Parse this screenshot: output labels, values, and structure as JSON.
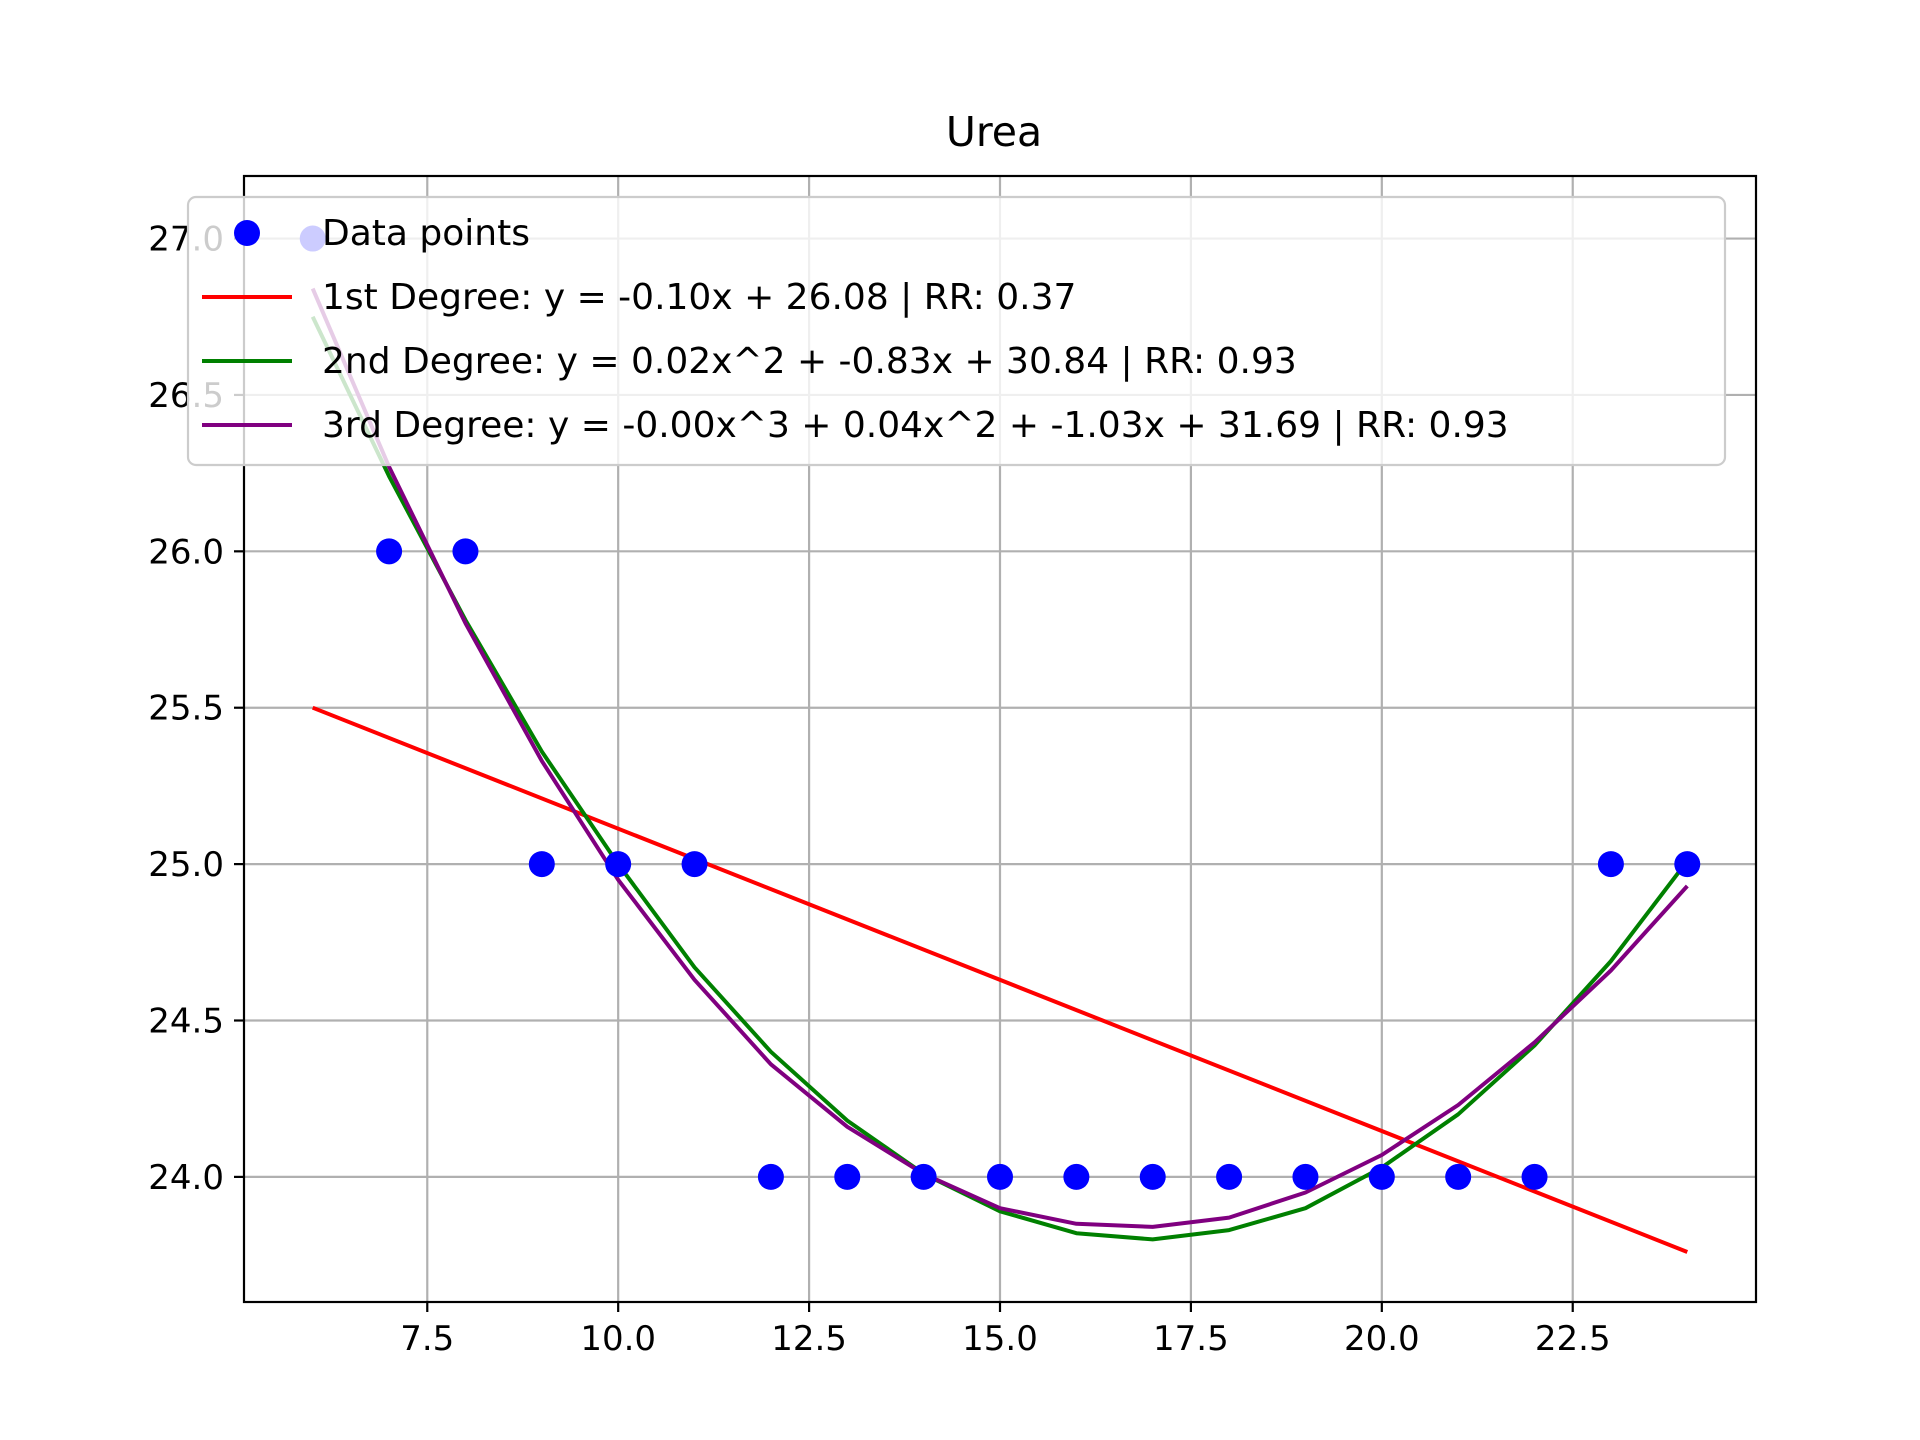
{
  "chart_data": {
    "type": "scatter",
    "title": "Urea",
    "xlabel": "",
    "ylabel": "",
    "xlim": [
      5.1,
      24.9
    ],
    "ylim": [
      23.6,
      27.2
    ],
    "xticks": [
      7.5,
      10.0,
      12.5,
      15.0,
      17.5,
      20.0,
      22.5
    ],
    "xtick_labels": [
      "7.5",
      "10.0",
      "12.5",
      "15.0",
      "17.5",
      "20.0",
      "22.5"
    ],
    "yticks": [
      24.0,
      24.5,
      25.0,
      25.5,
      26.0,
      26.5,
      27.0
    ],
    "ytick_labels": [
      "24.0",
      "24.5",
      "25.0",
      "25.5",
      "26.0",
      "26.5",
      "27.0"
    ],
    "grid": true,
    "legend_position": "top-right",
    "points": {
      "name": "Data points",
      "color": "#0000ff",
      "x": [
        6,
        7,
        8,
        9,
        10,
        11,
        12,
        13,
        14,
        15,
        16,
        17,
        18,
        19,
        20,
        21,
        22,
        23,
        24
      ],
      "y": [
        27,
        26,
        26,
        25,
        25,
        25,
        24,
        24,
        24,
        24,
        24,
        24,
        24,
        24,
        24,
        24,
        24,
        25,
        25
      ]
    },
    "series": [
      {
        "name": "1st Degree: y = -0.10x + 26.08 | RR: 0.37",
        "color": "#ff0000",
        "x": [
          6,
          24
        ],
        "y": [
          25.5,
          23.76
        ]
      },
      {
        "name": "2nd Degree: y = 0.02x^2 + -0.83x + 30.84 | RR: 0.93",
        "color": "#008000",
        "x": [
          6,
          7,
          8,
          9,
          10,
          11,
          12,
          13,
          14,
          15,
          16,
          17,
          18,
          19,
          20,
          21,
          22,
          23,
          24
        ],
        "y": [
          26.75,
          26.24,
          25.78,
          25.36,
          25.0,
          24.67,
          24.4,
          24.18,
          24.01,
          23.89,
          23.82,
          23.8,
          23.83,
          23.9,
          24.03,
          24.2,
          24.42,
          24.69,
          25.01
        ]
      },
      {
        "name": "3rd Degree: y = -0.00x^3 + 0.04x^2 + -1.03x + 31.69 | RR: 0.93",
        "color": "#800080",
        "x": [
          6,
          7,
          8,
          9,
          10,
          11,
          12,
          13,
          14,
          15,
          16,
          17,
          18,
          19,
          20,
          21,
          22,
          23,
          24
        ],
        "y": [
          26.84,
          26.27,
          25.77,
          25.33,
          24.95,
          24.63,
          24.36,
          24.16,
          24.01,
          23.9,
          23.85,
          23.84,
          23.87,
          23.95,
          24.07,
          24.23,
          24.43,
          24.66,
          24.93
        ]
      }
    ]
  }
}
